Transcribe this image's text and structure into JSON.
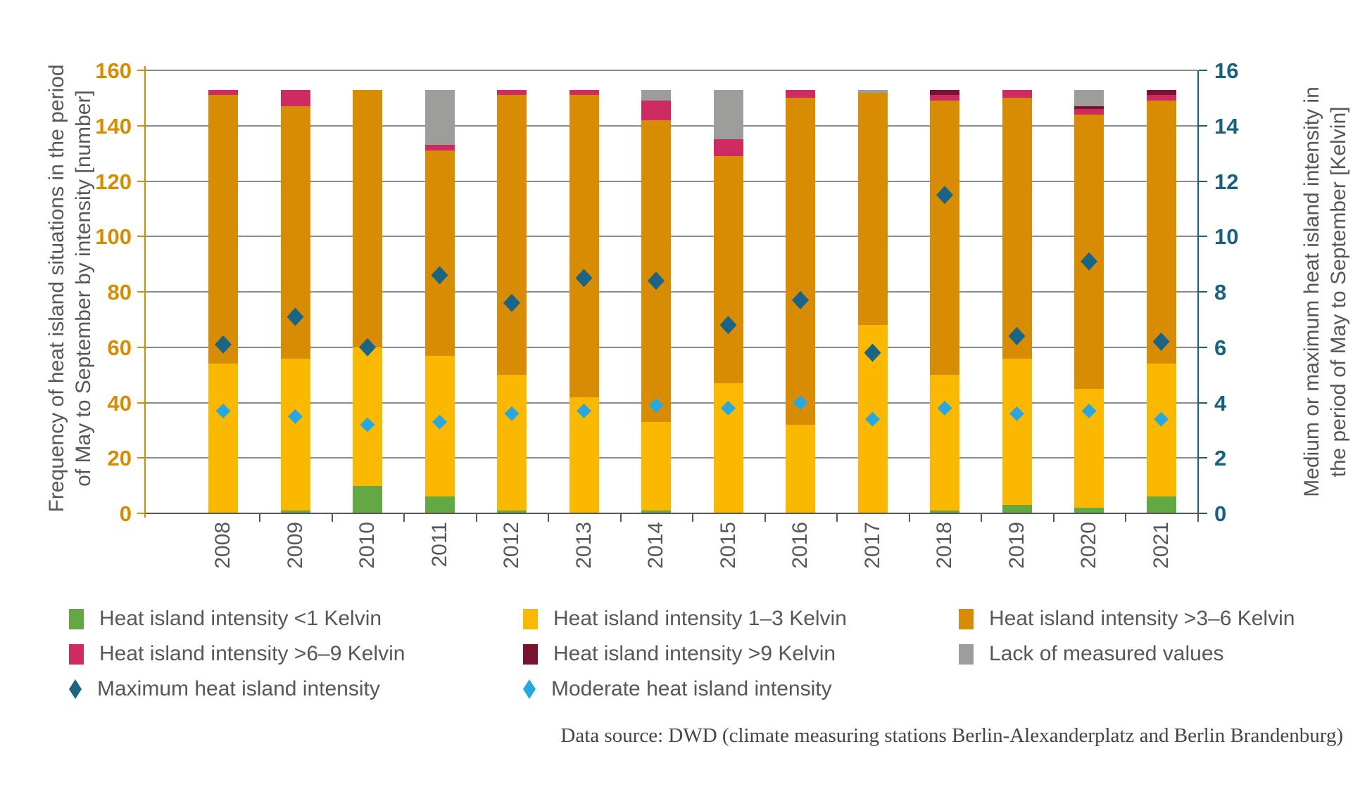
{
  "colors": {
    "green": "#62A944",
    "yellow": "#FAB900",
    "orange": "#D88C04",
    "pink": "#CE2B62",
    "darkred": "#7A132F",
    "gray": "#9D9D9B",
    "max_blue": "#1A6486",
    "moderate_blue": "#29A8E0",
    "left_axis": "#D78C00",
    "right_axis": "#17617F",
    "bottom_axis": "#575756",
    "grid": "#8C8C8C",
    "text": "#575756",
    "source_text": "#454545"
  },
  "left_axis_title": {
    "line1": "Frequency of heat island situations in the period",
    "line2": "of May to September by intensity [number]"
  },
  "right_axis_title": {
    "line1": "Medium or maximum heat island intensity in",
    "line2": "the period of May to September [Kelvin]"
  },
  "chart_data": {
    "type": "bar",
    "stacked": true,
    "grid": true,
    "categories": [
      "2008",
      "2009",
      "2010",
      "2011",
      "2012",
      "2013",
      "2014",
      "2015",
      "2016",
      "2017",
      "2018",
      "2019",
      "2020",
      "2021"
    ],
    "left_axis": {
      "min": 0,
      "max": 160,
      "step": 20,
      "ticks": [
        0,
        20,
        40,
        60,
        80,
        100,
        120,
        140,
        160
      ]
    },
    "right_axis": {
      "min": 0,
      "max": 16,
      "step": 2,
      "ticks": [
        0,
        2,
        4,
        6,
        8,
        10,
        12,
        14,
        16
      ]
    },
    "series": [
      {
        "name": "Heat island intensity <1 Kelvin",
        "color_key": "green",
        "values": [
          0,
          1,
          10,
          6,
          1,
          0,
          1,
          0,
          0,
          0,
          1,
          3,
          2,
          6
        ]
      },
      {
        "name": "Heat island intensity 1–3 Kelvin",
        "color_key": "yellow",
        "values": [
          54,
          55,
          50,
          51,
          49,
          42,
          32,
          47,
          32,
          68,
          49,
          53,
          43,
          48
        ]
      },
      {
        "name": "Heat island intensity >3–6 Kelvin",
        "color_key": "orange",
        "values": [
          97,
          91,
          93,
          74,
          101,
          109,
          109,
          82,
          118,
          84,
          99,
          94,
          99,
          95
        ]
      },
      {
        "name": "Heat island intensity >6–9 Kelvin",
        "color_key": "pink",
        "values": [
          2,
          6,
          0,
          2,
          2,
          2,
          7,
          6,
          3,
          0,
          2,
          3,
          2,
          2
        ]
      },
      {
        "name": "Heat island intensity >9 Kelvin",
        "color_key": "darkred",
        "values": [
          0,
          0,
          0,
          0,
          0,
          0,
          0,
          0,
          0,
          0,
          2,
          0,
          1,
          2
        ]
      },
      {
        "name": "Lack of measured values",
        "color_key": "gray",
        "values": [
          0,
          0,
          0,
          20,
          0,
          0,
          4,
          18,
          0,
          1,
          0,
          0,
          6,
          0
        ]
      }
    ],
    "markers": [
      {
        "name": "Maximum heat island intensity",
        "color_key": "max_blue",
        "axis": "right",
        "values": [
          6.1,
          7.1,
          6.0,
          8.6,
          7.6,
          8.5,
          8.4,
          6.8,
          7.7,
          5.8,
          11.5,
          6.4,
          9.1,
          6.2
        ]
      },
      {
        "name": "Moderate heat island intensity",
        "color_key": "moderate_blue",
        "axis": "right",
        "values": [
          3.7,
          3.5,
          3.2,
          3.3,
          3.6,
          3.7,
          3.9,
          3.8,
          4.0,
          3.4,
          3.8,
          3.6,
          3.7,
          3.4
        ]
      }
    ]
  },
  "legend": {
    "rows": [
      [
        {
          "label": "Heat island intensity <1 Kelvin",
          "color_key": "green",
          "shape": "square"
        },
        {
          "label": "Heat island intensity 1–3 Kelvin",
          "color_key": "yellow",
          "shape": "square"
        },
        {
          "label": "Heat island intensity >3–6 Kelvin",
          "color_key": "orange",
          "shape": "square"
        }
      ],
      [
        {
          "label": "Heat island intensity >6–9 Kelvin",
          "color_key": "pink",
          "shape": "square"
        },
        {
          "label": "Heat island intensity >9 Kelvin",
          "color_key": "darkred",
          "shape": "square"
        },
        {
          "label": "Lack of measured values",
          "color_key": "gray",
          "shape": "square"
        }
      ],
      [
        {
          "label": "Maximum heat island intensity",
          "color_key": "max_blue",
          "shape": "diamond"
        },
        {
          "label": "Moderate heat island intensity",
          "color_key": "moderate_blue",
          "shape": "diamond"
        }
      ]
    ]
  },
  "source_note": "Data source: DWD (climate measuring stations Berlin-Alexanderplatz and Berlin Brandenburg)"
}
